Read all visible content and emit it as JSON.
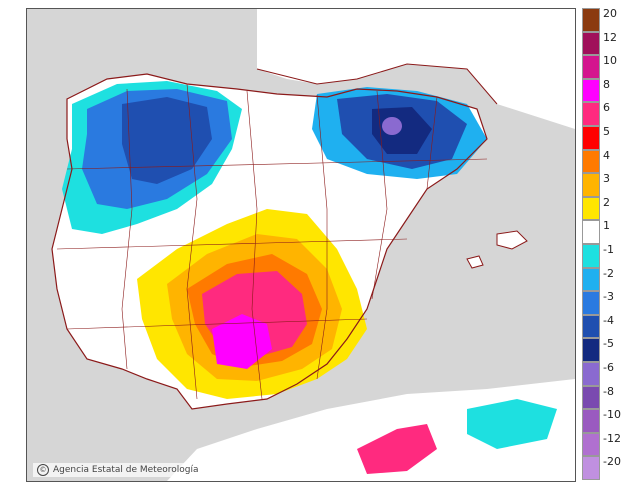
{
  "map": {
    "credit": "Agencia Estatal de Meteorología",
    "brand": "aemet"
  },
  "legend": {
    "items": [
      {
        "label": "20",
        "color": "#8b3a0f"
      },
      {
        "label": "12",
        "color": "#a0105a"
      },
      {
        "label": "10",
        "color": "#d4158e"
      },
      {
        "label": "8",
        "color": "#ff00ff"
      },
      {
        "label": "6",
        "color": "#ff2a7f"
      },
      {
        "label": "5",
        "color": "#ff0000"
      },
      {
        "label": "4",
        "color": "#ff7a00"
      },
      {
        "label": "3",
        "color": "#ffb400"
      },
      {
        "label": "2",
        "color": "#ffe600"
      },
      {
        "label": "1",
        "color": "#ffffff"
      },
      {
        "label": "-1",
        "color": "#1ee0e0"
      },
      {
        "label": "-2",
        "color": "#1fb0f0"
      },
      {
        "label": "-3",
        "color": "#2a7ae0"
      },
      {
        "label": "-4",
        "color": "#1f4fb0"
      },
      {
        "label": "-5",
        "color": "#132a80"
      },
      {
        "label": "-6",
        "color": "#8a6ad0"
      },
      {
        "label": "-8",
        "color": "#7a4ab0"
      },
      {
        "label": "-10",
        "color": "#9a5ac0"
      },
      {
        "label": "-12",
        "color": "#b070d0"
      },
      {
        "label": "-20",
        "color": "#c090e0"
      }
    ]
  }
}
